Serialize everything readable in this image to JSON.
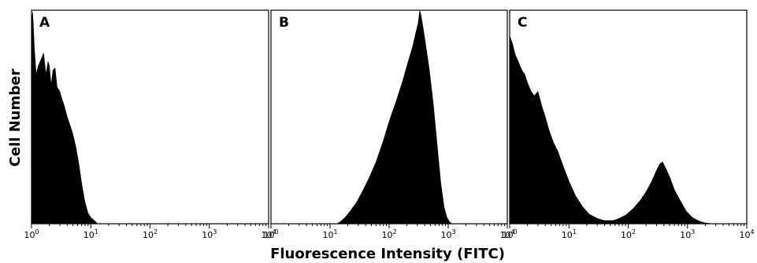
{
  "xlabel": "Fluorescence Intensity (FITC)",
  "ylabel": "Cell Number",
  "chart_data": [
    {
      "type": "area",
      "panel_label": "A",
      "x_scale": "log",
      "xlim": [
        1,
        10000
      ],
      "x_ticks": [
        {
          "base": "10",
          "exp": "0"
        },
        {
          "base": "10",
          "exp": "1"
        },
        {
          "base": "10",
          "exp": "2"
        },
        {
          "base": "10",
          "exp": "3"
        },
        {
          "base": "10",
          "exp": "4"
        }
      ],
      "ylim": [
        0,
        100
      ],
      "x": [
        1.0,
        1.05,
        1.12,
        1.2,
        1.3,
        1.45,
        1.6,
        1.75,
        1.9,
        2.0,
        2.15,
        2.3,
        2.5,
        2.7,
        3.0,
        3.3,
        3.6,
        4.0,
        4.5,
        5.0,
        5.6,
        6.3,
        7.1,
        8.0,
        9.0,
        10.0,
        11.0,
        12.0,
        13.0
      ],
      "values": [
        95,
        99,
        82,
        70,
        74,
        77,
        80,
        70,
        76,
        74,
        65,
        72,
        73,
        64,
        62,
        58,
        55,
        50,
        46,
        42,
        36,
        28,
        18,
        10,
        5,
        3,
        2,
        1,
        0
      ]
    },
    {
      "type": "area",
      "panel_label": "B",
      "x_scale": "log",
      "xlim": [
        1,
        10000
      ],
      "x_ticks": [
        {
          "base": "10",
          "exp": "0"
        },
        {
          "base": "10",
          "exp": "1"
        },
        {
          "base": "10",
          "exp": "2"
        },
        {
          "base": "10",
          "exp": "3"
        },
        {
          "base": "10",
          "exp": "4"
        }
      ],
      "ylim": [
        0,
        100
      ],
      "x": [
        13,
        15,
        18,
        22,
        28,
        35,
        45,
        60,
        80,
        100,
        130,
        170,
        210,
        250,
        280,
        310,
        330,
        350,
        380,
        420,
        480,
        560,
        650,
        750,
        850,
        950,
        1050,
        1100,
        1150
      ],
      "values": [
        0,
        1,
        3,
        6,
        10,
        15,
        21,
        29,
        39,
        48,
        57,
        67,
        76,
        83,
        89,
        94,
        100,
        97,
        91,
        83,
        72,
        56,
        37,
        19,
        8,
        3,
        1,
        0.5,
        0
      ]
    },
    {
      "type": "area",
      "panel_label": "C",
      "x_scale": "log",
      "xlim": [
        1,
        10000
      ],
      "x_ticks": [
        {
          "base": "10",
          "exp": "0"
        },
        {
          "base": "10",
          "exp": "1"
        },
        {
          "base": "10",
          "exp": "2"
        },
        {
          "base": "10",
          "exp": "3"
        },
        {
          "base": "10",
          "exp": "4"
        }
      ],
      "ylim": [
        0,
        100
      ],
      "x": [
        1.0,
        1.1,
        1.25,
        1.4,
        1.6,
        1.8,
        2.0,
        2.3,
        2.6,
        3.0,
        3.5,
        4.0,
        4.6,
        5.5,
        6.5,
        8,
        10,
        13,
        17,
        22,
        30,
        40,
        55,
        70,
        90,
        120,
        160,
        200,
        250,
        300,
        340,
        380,
        430,
        500,
        600,
        750,
        950,
        1200,
        1500,
        1900,
        2300,
        2600
      ],
      "values": [
        88,
        85,
        79,
        76,
        72,
        70,
        66,
        62,
        60,
        62,
        55,
        50,
        44,
        38,
        34,
        27,
        20,
        13,
        8,
        4.5,
        2.5,
        1.5,
        1.5,
        2.5,
        4,
        7,
        11,
        15,
        20,
        25,
        28,
        29,
        26,
        22,
        16,
        11,
        6,
        3,
        1.5,
        0.5,
        0.2,
        0
      ]
    }
  ]
}
